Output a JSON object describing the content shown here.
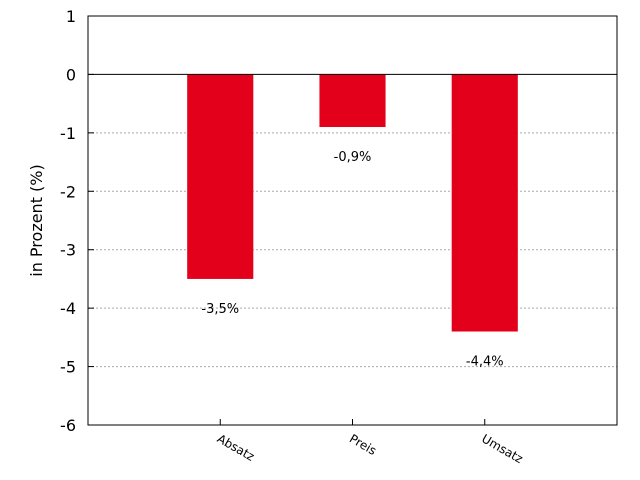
{
  "chart_data": {
    "type": "bar",
    "categories": [
      "Absatz",
      "Preis",
      "Umsatz"
    ],
    "values": [
      -3.5,
      -0.9,
      -4.4
    ],
    "value_labels": [
      "-3,5%",
      "-0,9%",
      "-4,4%"
    ],
    "title": "",
    "xlabel": "",
    "ylabel": "in Prozent (%)",
    "ylim": [
      -6,
      1
    ],
    "yticks": [
      1,
      0,
      -1,
      -2,
      -3,
      -4,
      -5,
      -6
    ],
    "ytick_labels": [
      "1",
      "0",
      "-1",
      "-2",
      "-3",
      "-4",
      "-5",
      "-6"
    ],
    "grid": "horizontal dotted",
    "legend": "none",
    "bar_color": "#e2001a"
  }
}
